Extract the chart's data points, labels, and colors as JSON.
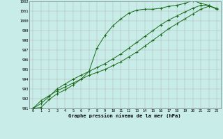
{
  "x": [
    0,
    1,
    2,
    3,
    4,
    5,
    6,
    7,
    8,
    9,
    10,
    11,
    12,
    13,
    14,
    15,
    16,
    17,
    18,
    19,
    20,
    21,
    22,
    23
  ],
  "line1": [
    991.0,
    991.8,
    992.3,
    992.8,
    993.2,
    993.6,
    994.0,
    994.4,
    994.7,
    995.0,
    995.4,
    995.8,
    996.3,
    996.8,
    997.4,
    998.0,
    998.6,
    999.2,
    999.7,
    1000.2,
    1000.7,
    1001.2,
    1001.5,
    1001.3
  ],
  "line2": [
    991.0,
    991.5,
    992.2,
    993.0,
    993.5,
    994.0,
    994.4,
    994.8,
    995.2,
    995.6,
    996.1,
    996.6,
    997.2,
    997.8,
    998.4,
    999.0,
    999.6,
    1000.1,
    1000.5,
    1000.9,
    1001.3,
    1001.6,
    1001.6,
    1001.2
  ],
  "line3": [
    991.0,
    991.1,
    991.9,
    992.5,
    992.9,
    993.4,
    994.0,
    994.8,
    997.2,
    998.5,
    999.5,
    1000.2,
    1000.8,
    1001.1,
    1001.2,
    1001.2,
    1001.3,
    1001.5,
    1001.6,
    1001.8,
    1002.1,
    1001.8,
    1001.6,
    1001.2
  ],
  "bg_color": "#c8ece8",
  "grid_color": "#b0b0b0",
  "line_color": "#1a6b1a",
  "title": "Graphe pression niveau de la mer (hPa)",
  "ylim": [
    991,
    1002
  ],
  "xlim": [
    -0.5,
    23.5
  ],
  "yticks": [
    991,
    992,
    993,
    994,
    995,
    996,
    997,
    998,
    999,
    1000,
    1001,
    1002
  ],
  "xticks": [
    0,
    1,
    2,
    3,
    4,
    5,
    6,
    7,
    8,
    9,
    10,
    11,
    12,
    13,
    14,
    15,
    16,
    17,
    18,
    19,
    20,
    21,
    22,
    23
  ]
}
